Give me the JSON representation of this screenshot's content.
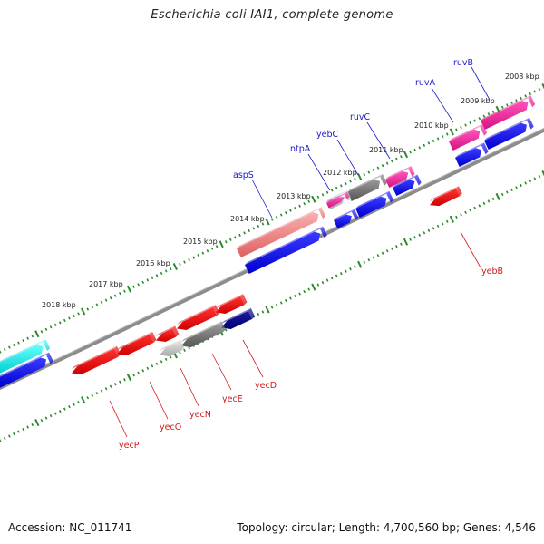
{
  "title": "Escherichia coli IAI1, complete genome",
  "footer": {
    "accession": "Accession: NC_011741",
    "summary": "Topology: circular; Length: 4,700,560 bp; Genes: 4,546"
  },
  "colors": {
    "backbone": "#8c8c8c",
    "ticks": "#2a8a2a",
    "forward_label": "#1a1acc",
    "reverse_label": "#cc1a1a"
  },
  "kbp_labels": [
    "2008 kbp",
    "2009 kbp",
    "2010 kbp",
    "2011 kbp",
    "2012 kbp",
    "2013 kbp",
    "2014 kbp",
    "2015 kbp",
    "2016 kbp",
    "2017 kbp",
    "2018 kbp"
  ],
  "gene_labels_forward": [
    "ruvB",
    "ruvA",
    "ruvC",
    "yebC",
    "ntpA",
    "aspS"
  ],
  "gene_labels_reverse": [
    "yebB",
    "yecD",
    "yecE",
    "yecN",
    "yecO",
    "yecP"
  ]
}
